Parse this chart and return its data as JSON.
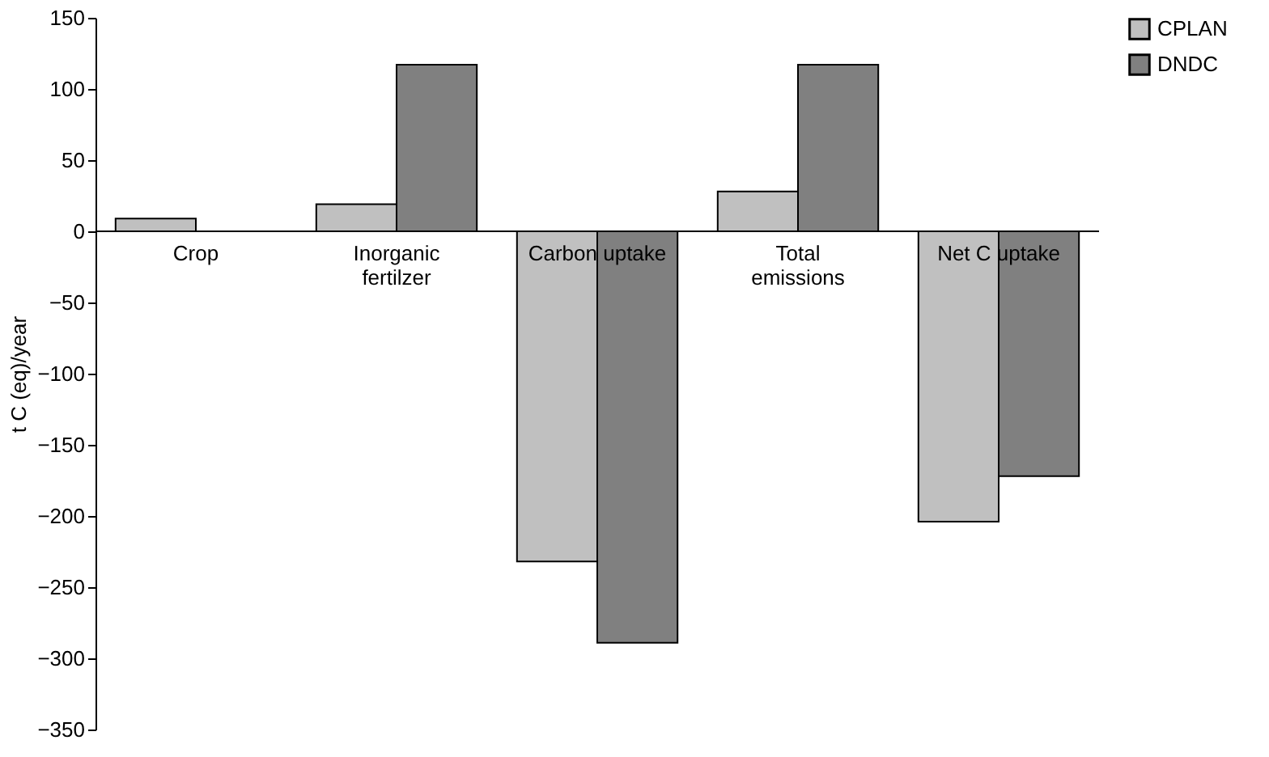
{
  "chart_data": {
    "type": "bar",
    "ylabel": "t C (eq)/year",
    "categories": [
      "Crop",
      "Inorganic fertilzer",
      "Carbon uptake",
      "Total emissions",
      "Net C uptake"
    ],
    "series": [
      {
        "name": "CPLAN",
        "color": "#c0c0c0",
        "values": [
          9,
          19,
          -232,
          28,
          -204
        ]
      },
      {
        "name": "DNDC",
        "color": "#808080",
        "values": [
          null,
          117,
          -289,
          117,
          -172
        ]
      }
    ],
    "ylim": [
      -350,
      150
    ],
    "yticks": [
      -350,
      -300,
      -250,
      -200,
      -150,
      -100,
      -50,
      0,
      50,
      100,
      150
    ],
    "grid": false,
    "legend": "right"
  }
}
